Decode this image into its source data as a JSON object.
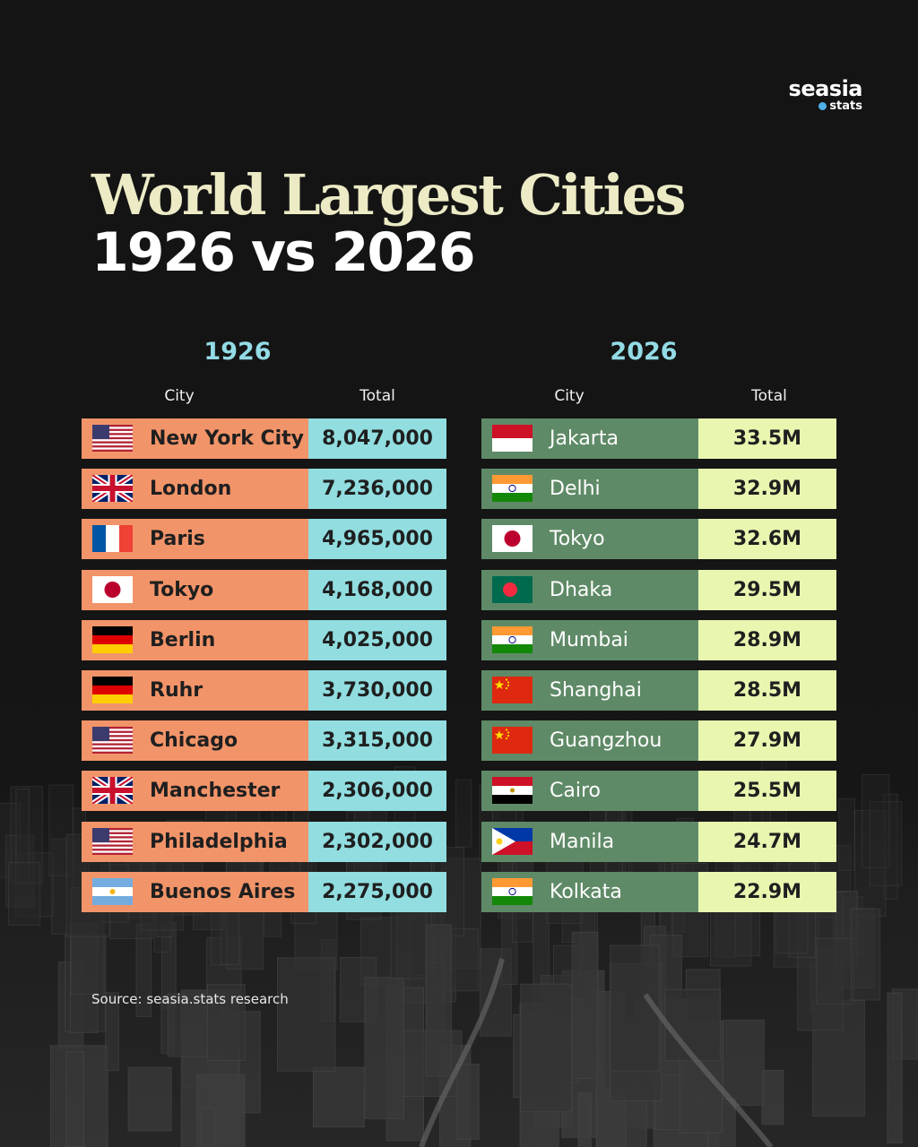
{
  "brand": {
    "name": "seasia",
    "sub": "stats",
    "accent": "#4fb0e8"
  },
  "title": {
    "line1": "World Largest Cities",
    "line2": "1926 vs 2026"
  },
  "headers": {
    "city": "City",
    "total": "Total"
  },
  "left": {
    "year": "1926",
    "colors": {
      "name_bg": "#f29469",
      "value_bg": "#91dde0"
    },
    "rows": [
      {
        "flag": "us-flag-icon",
        "city": "New York City",
        "total": "8,047,000"
      },
      {
        "flag": "uk-flag-icon",
        "city": "London",
        "total": "7,236,000"
      },
      {
        "flag": "france-flag-icon",
        "city": "Paris",
        "total": "4,965,000"
      },
      {
        "flag": "japan-flag-icon",
        "city": "Tokyo",
        "total": "4,168,000"
      },
      {
        "flag": "germany-flag-icon",
        "city": "Berlin",
        "total": "4,025,000"
      },
      {
        "flag": "germany-flag-icon",
        "city": "Ruhr",
        "total": "3,730,000"
      },
      {
        "flag": "us-flag-icon",
        "city": "Chicago",
        "total": "3,315,000"
      },
      {
        "flag": "uk-flag-icon",
        "city": "Manchester",
        "total": "2,306,000"
      },
      {
        "flag": "us-flag-icon",
        "city": "Philadelphia",
        "total": "2,302,000"
      },
      {
        "flag": "argentina-flag-icon",
        "city": "Buenos Aires",
        "total": "2,275,000"
      }
    ]
  },
  "right": {
    "year": "2026",
    "colors": {
      "name_bg": "#5f8a67",
      "value_bg": "#e8f6b0"
    },
    "rows": [
      {
        "flag": "indonesia-flag-icon",
        "city": "Jakarta",
        "total": "33.5M"
      },
      {
        "flag": "india-flag-icon",
        "city": "Delhi",
        "total": "32.9M"
      },
      {
        "flag": "japan-flag-icon",
        "city": "Tokyo",
        "total": "32.6M"
      },
      {
        "flag": "bangladesh-flag-icon",
        "city": "Dhaka",
        "total": "29.5M"
      },
      {
        "flag": "india-flag-icon",
        "city": "Mumbai",
        "total": "28.9M"
      },
      {
        "flag": "china-flag-icon",
        "city": "Shanghai",
        "total": "28.5M"
      },
      {
        "flag": "china-flag-icon",
        "city": "Guangzhou",
        "total": "27.9M"
      },
      {
        "flag": "egypt-flag-icon",
        "city": "Cairo",
        "total": "25.5M"
      },
      {
        "flag": "philippines-flag-icon",
        "city": "Manila",
        "total": "24.7M"
      },
      {
        "flag": "india-flag-icon",
        "city": "Kolkata",
        "total": "22.9M"
      }
    ]
  },
  "source": "Source: seasia.stats research"
}
